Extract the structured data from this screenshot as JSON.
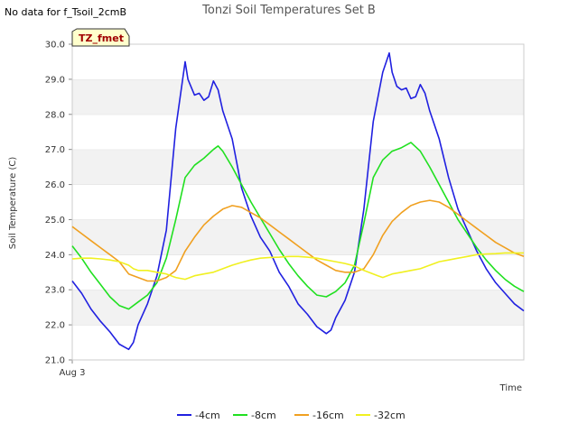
{
  "header": {
    "no_data_text": "No data for f_Tsoil_2cmB"
  },
  "badge": {
    "text": "TZ_fmet"
  },
  "chart_data": {
    "type": "line",
    "title": "Tonzi Soil Temperatures Set B",
    "xlabel": "Time",
    "ylabel": "Soil Temperature (C)",
    "ylim": [
      21.0,
      30.0
    ],
    "yticks": [
      "21.0",
      "22.0",
      "23.0",
      "24.0",
      "25.0",
      "26.0",
      "27.0",
      "28.0",
      "29.0",
      "30.0"
    ],
    "xticks": [
      {
        "label": "Aug 3",
        "hour": 0
      }
    ],
    "xlim_hours": [
      0,
      48
    ],
    "grid": "horizontal-bands",
    "legend_position": "bottom-center",
    "series": [
      {
        "name": "-4cm",
        "color": "#2020e0",
        "points": [
          [
            0,
            23.25
          ],
          [
            1,
            22.9
          ],
          [
            2,
            22.45
          ],
          [
            3,
            22.1
          ],
          [
            4,
            21.8
          ],
          [
            5,
            21.45
          ],
          [
            6,
            21.3
          ],
          [
            6.5,
            21.5
          ],
          [
            7,
            22.0
          ],
          [
            8,
            22.6
          ],
          [
            9,
            23.4
          ],
          [
            10,
            24.7
          ],
          [
            11,
            27.6
          ],
          [
            12,
            29.5
          ],
          [
            12.3,
            29.0
          ],
          [
            13,
            28.55
          ],
          [
            13.5,
            28.6
          ],
          [
            14,
            28.4
          ],
          [
            14.5,
            28.5
          ],
          [
            15,
            28.95
          ],
          [
            15.5,
            28.7
          ],
          [
            16,
            28.1
          ],
          [
            17,
            27.3
          ],
          [
            18,
            25.9
          ],
          [
            19,
            25.1
          ],
          [
            20,
            24.5
          ],
          [
            21,
            24.1
          ],
          [
            22,
            23.5
          ],
          [
            23,
            23.1
          ],
          [
            24,
            22.6
          ],
          [
            25,
            22.3
          ],
          [
            26,
            21.95
          ],
          [
            27,
            21.75
          ],
          [
            27.5,
            21.85
          ],
          [
            28,
            22.2
          ],
          [
            29,
            22.7
          ],
          [
            30,
            23.5
          ],
          [
            31,
            25.3
          ],
          [
            32,
            27.8
          ],
          [
            33,
            29.2
          ],
          [
            33.7,
            29.75
          ],
          [
            34,
            29.2
          ],
          [
            34.5,
            28.8
          ],
          [
            35,
            28.7
          ],
          [
            35.5,
            28.75
          ],
          [
            36,
            28.45
          ],
          [
            36.5,
            28.5
          ],
          [
            37,
            28.85
          ],
          [
            37.5,
            28.6
          ],
          [
            38,
            28.1
          ],
          [
            39,
            27.3
          ],
          [
            40,
            26.2
          ],
          [
            41,
            25.3
          ],
          [
            42,
            24.7
          ],
          [
            43,
            24.1
          ],
          [
            44,
            23.6
          ],
          [
            45,
            23.2
          ],
          [
            46,
            22.9
          ],
          [
            47,
            22.6
          ],
          [
            48,
            22.4
          ]
        ]
      },
      {
        "name": "-8cm",
        "color": "#20e020",
        "points": [
          [
            0,
            24.25
          ],
          [
            1,
            23.9
          ],
          [
            2,
            23.5
          ],
          [
            3,
            23.15
          ],
          [
            4,
            22.8
          ],
          [
            5,
            22.55
          ],
          [
            6,
            22.45
          ],
          [
            7,
            22.65
          ],
          [
            8,
            22.85
          ],
          [
            9,
            23.2
          ],
          [
            10,
            23.9
          ],
          [
            11,
            25.0
          ],
          [
            12,
            26.2
          ],
          [
            13,
            26.55
          ],
          [
            14,
            26.75
          ],
          [
            15,
            27.0
          ],
          [
            15.5,
            27.1
          ],
          [
            16,
            26.95
          ],
          [
            17,
            26.5
          ],
          [
            18,
            26.0
          ],
          [
            19,
            25.5
          ],
          [
            20,
            25.05
          ],
          [
            21,
            24.6
          ],
          [
            22,
            24.15
          ],
          [
            23,
            23.75
          ],
          [
            24,
            23.4
          ],
          [
            25,
            23.1
          ],
          [
            26,
            22.85
          ],
          [
            27,
            22.8
          ],
          [
            28,
            22.95
          ],
          [
            29,
            23.2
          ],
          [
            30,
            23.7
          ],
          [
            31,
            24.9
          ],
          [
            32,
            26.2
          ],
          [
            33,
            26.7
          ],
          [
            34,
            26.95
          ],
          [
            35,
            27.05
          ],
          [
            36,
            27.2
          ],
          [
            37,
            26.95
          ],
          [
            38,
            26.5
          ],
          [
            39,
            26.0
          ],
          [
            40,
            25.5
          ],
          [
            41,
            25.0
          ],
          [
            42,
            24.6
          ],
          [
            43,
            24.2
          ],
          [
            44,
            23.85
          ],
          [
            45,
            23.55
          ],
          [
            46,
            23.3
          ],
          [
            47,
            23.1
          ],
          [
            48,
            22.95
          ]
        ]
      },
      {
        "name": "-16cm",
        "color": "#f0a020",
        "points": [
          [
            0,
            24.8
          ],
          [
            1,
            24.6
          ],
          [
            2,
            24.4
          ],
          [
            3,
            24.2
          ],
          [
            4,
            24.0
          ],
          [
            5,
            23.8
          ],
          [
            6,
            23.45
          ],
          [
            7,
            23.35
          ],
          [
            8,
            23.25
          ],
          [
            9,
            23.25
          ],
          [
            10,
            23.35
          ],
          [
            11,
            23.55
          ],
          [
            12,
            24.1
          ],
          [
            13,
            24.5
          ],
          [
            14,
            24.85
          ],
          [
            15,
            25.1
          ],
          [
            16,
            25.3
          ],
          [
            17,
            25.4
          ],
          [
            18,
            25.35
          ],
          [
            19,
            25.2
          ],
          [
            20,
            25.05
          ],
          [
            21,
            24.85
          ],
          [
            22,
            24.65
          ],
          [
            23,
            24.45
          ],
          [
            24,
            24.25
          ],
          [
            25,
            24.05
          ],
          [
            26,
            23.85
          ],
          [
            27,
            23.7
          ],
          [
            28,
            23.55
          ],
          [
            29,
            23.5
          ],
          [
            30,
            23.5
          ],
          [
            31,
            23.6
          ],
          [
            32,
            24.0
          ],
          [
            33,
            24.55
          ],
          [
            34,
            24.95
          ],
          [
            35,
            25.2
          ],
          [
            36,
            25.4
          ],
          [
            37,
            25.5
          ],
          [
            38,
            25.55
          ],
          [
            39,
            25.5
          ],
          [
            40,
            25.35
          ],
          [
            41,
            25.15
          ],
          [
            42,
            24.95
          ],
          [
            43,
            24.75
          ],
          [
            44,
            24.55
          ],
          [
            45,
            24.35
          ],
          [
            46,
            24.2
          ],
          [
            47,
            24.05
          ],
          [
            48,
            23.95
          ]
        ]
      },
      {
        "name": "-32cm",
        "color": "#f0f020",
        "points": [
          [
            0,
            23.88
          ],
          [
            1,
            23.9
          ],
          [
            2,
            23.9
          ],
          [
            3,
            23.88
          ],
          [
            4,
            23.85
          ],
          [
            5,
            23.8
          ],
          [
            6,
            23.7
          ],
          [
            6.5,
            23.6
          ],
          [
            7,
            23.55
          ],
          [
            8,
            23.55
          ],
          [
            9,
            23.5
          ],
          [
            10,
            23.45
          ],
          [
            11,
            23.35
          ],
          [
            12,
            23.3
          ],
          [
            13,
            23.4
          ],
          [
            14,
            23.45
          ],
          [
            15,
            23.5
          ],
          [
            16,
            23.6
          ],
          [
            17,
            23.7
          ],
          [
            18,
            23.78
          ],
          [
            19,
            23.85
          ],
          [
            20,
            23.9
          ],
          [
            21,
            23.92
          ],
          [
            22,
            23.93
          ],
          [
            23,
            23.95
          ],
          [
            24,
            23.95
          ],
          [
            25,
            23.93
          ],
          [
            26,
            23.9
          ],
          [
            27,
            23.85
          ],
          [
            28,
            23.8
          ],
          [
            29,
            23.75
          ],
          [
            30,
            23.68
          ],
          [
            31,
            23.55
          ],
          [
            32,
            23.45
          ],
          [
            32.5,
            23.4
          ],
          [
            33,
            23.35
          ],
          [
            34,
            23.45
          ],
          [
            35,
            23.5
          ],
          [
            36,
            23.55
          ],
          [
            37,
            23.6
          ],
          [
            38,
            23.7
          ],
          [
            39,
            23.8
          ],
          [
            40,
            23.85
          ],
          [
            41,
            23.9
          ],
          [
            42,
            23.95
          ],
          [
            43,
            24.0
          ],
          [
            44,
            24.02
          ],
          [
            45,
            24.03
          ],
          [
            46,
            24.05
          ],
          [
            47,
            24.05
          ],
          [
            48,
            24.05
          ]
        ]
      }
    ]
  }
}
